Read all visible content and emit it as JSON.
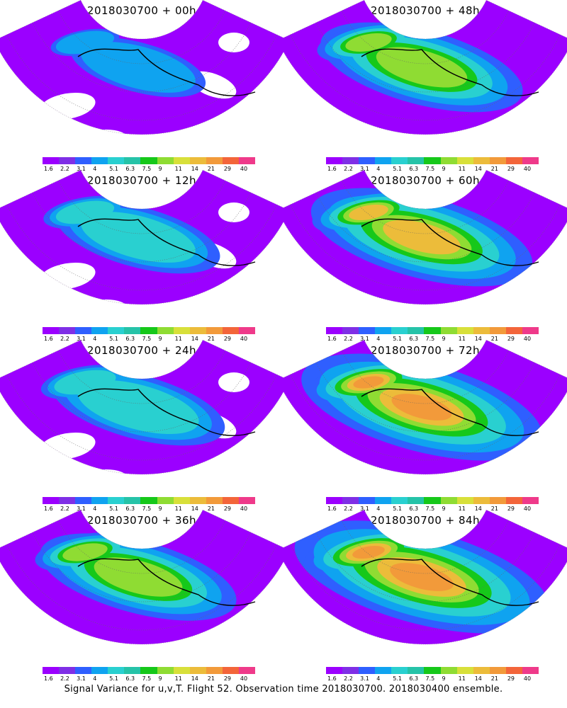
{
  "panels": [
    {
      "title": "2018030700 + 00h",
      "level": 0.1
    },
    {
      "title": "2018030700 + 12h",
      "level": 0.25
    },
    {
      "title": "2018030700 + 24h",
      "level": 0.3
    },
    {
      "title": "2018030700 + 36h",
      "level": 0.42
    },
    {
      "title": "2018030700 + 48h",
      "level": 0.45
    },
    {
      "title": "2018030700 + 60h",
      "level": 0.55
    },
    {
      "title": "2018030700 + 72h",
      "level": 0.65
    },
    {
      "title": "2018030700 + 84h",
      "level": 0.72
    }
  ],
  "colorbar": {
    "labels": [
      "1.6",
      "2.2",
      "3.1",
      "4",
      "5.1",
      "6.3",
      "7.5",
      "9",
      "11",
      "14",
      "21",
      "29",
      "40"
    ],
    "colors": [
      "#9b00ff",
      "#7f2fe6",
      "#2f5fff",
      "#0fa3f0",
      "#29d0d0",
      "#25c3a8",
      "#16c81a",
      "#8fdc33",
      "#d8e03a",
      "#ecbc3a",
      "#f29a3a",
      "#f3653a",
      "#ef3a8a"
    ]
  },
  "footer": "Signal Variance for u,v,T. Flight 52. Observation time 2018030700. 2018030400 ensemble."
}
